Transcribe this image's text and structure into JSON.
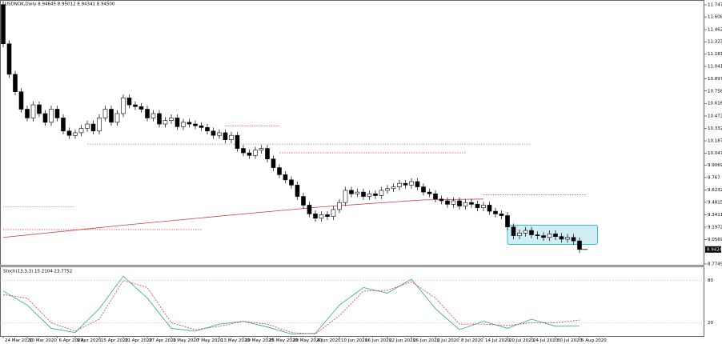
{
  "chart_data": {
    "type": "candlestick",
    "title": "USDNOK,Daily 8.94645 8.95012 8.94341 8.94500",
    "ylim": [
      8.757,
      11.802
    ],
    "yticks": [
      11.7472,
      11.6085,
      11.4624,
      11.3232,
      11.1815,
      11.041,
      10.897,
      10.7585,
      10.6167,
      10.4722,
      10.332,
      10.1876,
      10.0472,
      9.9069,
      9.767,
      9.6232,
      9.4815,
      9.3411,
      9.1972,
      9.0569,
      8.7749
    ],
    "last_price": {
      "value": 8.9424,
      "label": "8.9424"
    },
    "xticks": [
      {
        "value": 0,
        "label": "24 Mar 2020"
      },
      {
        "value": 4,
        "label": "30 Mar 2020"
      },
      {
        "value": 9,
        "label": "6 Apr 2020"
      },
      {
        "value": 12,
        "label": "9 Apr 2020"
      },
      {
        "value": 16,
        "label": "15 Apr 2020"
      },
      {
        "value": 20,
        "label": "21 Apr 2020"
      },
      {
        "value": 24,
        "label": "27 Apr 2020"
      },
      {
        "value": 28,
        "label": "1 May 2020"
      },
      {
        "value": 32,
        "label": "7 May 2020"
      },
      {
        "value": 36,
        "label": "13 May 2020"
      },
      {
        "value": 40,
        "label": "19 May 2020"
      },
      {
        "value": 44,
        "label": "25 May 2020"
      },
      {
        "value": 48,
        "label": "29 May 2020"
      },
      {
        "value": 52,
        "label": "4 Jun 2020"
      },
      {
        "value": 56,
        "label": "10 Jun 2020"
      },
      {
        "value": 60,
        "label": "16 Jun 2020"
      },
      {
        "value": 64,
        "label": "22 Jun 2020"
      },
      {
        "value": 68,
        "label": "26 Jun 2020"
      },
      {
        "value": 72,
        "label": "2 Jul 2020"
      },
      {
        "value": 76,
        "label": "8 Jul 2020"
      },
      {
        "value": 80,
        "label": "14 Jul 2020"
      },
      {
        "value": 84,
        "label": "20 Jul 2020"
      },
      {
        "value": 88,
        "label": "24 Jul 2020"
      },
      {
        "value": 92,
        "label": "30 Jul 2020"
      },
      {
        "value": 96,
        "label": "5 Aug 2020"
      }
    ],
    "candles": [
      [
        11.75,
        11.79,
        11.26,
        11.3
      ],
      [
        11.3,
        11.34,
        10.91,
        10.95
      ],
      [
        10.95,
        10.99,
        10.71,
        10.75
      ],
      [
        10.75,
        10.79,
        10.51,
        10.55
      ],
      [
        10.55,
        10.59,
        10.41,
        10.45
      ],
      [
        10.45,
        10.64,
        10.41,
        10.6
      ],
      [
        10.6,
        10.64,
        10.46,
        10.5
      ],
      [
        10.5,
        10.54,
        10.36,
        10.4
      ],
      [
        10.4,
        10.59,
        10.36,
        10.55
      ],
      [
        10.55,
        10.59,
        10.41,
        10.45
      ],
      [
        10.45,
        10.49,
        10.26,
        10.3
      ],
      [
        10.3,
        10.34,
        10.21,
        10.25
      ],
      [
        10.25,
        10.32,
        10.21,
        10.28
      ],
      [
        10.28,
        10.37,
        10.24,
        10.33
      ],
      [
        10.33,
        10.42,
        10.29,
        10.38
      ],
      [
        10.38,
        10.42,
        10.26,
        10.3
      ],
      [
        10.3,
        10.49,
        10.26,
        10.45
      ],
      [
        10.45,
        10.59,
        10.41,
        10.55
      ],
      [
        10.55,
        10.59,
        10.36,
        10.4
      ],
      [
        10.4,
        10.54,
        10.36,
        10.5
      ],
      [
        10.5,
        10.72,
        10.46,
        10.68
      ],
      [
        10.68,
        10.72,
        10.56,
        10.6
      ],
      [
        10.6,
        10.64,
        10.54,
        10.58
      ],
      [
        10.58,
        10.62,
        10.51,
        10.55
      ],
      [
        10.55,
        10.59,
        10.41,
        10.45
      ],
      [
        10.45,
        10.54,
        10.41,
        10.5
      ],
      [
        10.5,
        10.54,
        10.34,
        10.38
      ],
      [
        10.38,
        10.46,
        10.34,
        10.42
      ],
      [
        10.42,
        10.49,
        10.38,
        10.45
      ],
      [
        10.45,
        10.49,
        10.31,
        10.35
      ],
      [
        10.35,
        10.44,
        10.31,
        10.4
      ],
      [
        10.4,
        10.44,
        10.34,
        10.38
      ],
      [
        10.38,
        10.42,
        10.32,
        10.36
      ],
      [
        10.36,
        10.4,
        10.3,
        10.34
      ],
      [
        10.34,
        10.38,
        10.26,
        10.3
      ],
      [
        10.3,
        10.34,
        10.21,
        10.25
      ],
      [
        10.25,
        10.32,
        10.21,
        10.28
      ],
      [
        10.28,
        10.32,
        10.16,
        10.2
      ],
      [
        10.2,
        10.29,
        10.16,
        10.25
      ],
      [
        10.25,
        10.29,
        10.06,
        10.1
      ],
      [
        10.1,
        10.14,
        10.01,
        10.05
      ],
      [
        10.05,
        10.09,
        9.98,
        10.02
      ],
      [
        10.02,
        10.12,
        9.98,
        10.08
      ],
      [
        10.08,
        10.14,
        10.04,
        10.1
      ],
      [
        10.1,
        10.14,
        9.94,
        9.98
      ],
      [
        9.98,
        10.02,
        9.84,
        9.88
      ],
      [
        9.88,
        9.92,
        9.76,
        9.8
      ],
      [
        9.8,
        9.84,
        9.7,
        9.74
      ],
      [
        9.74,
        9.78,
        9.64,
        9.68
      ],
      [
        9.68,
        9.72,
        9.51,
        9.55
      ],
      [
        9.55,
        9.59,
        9.41,
        9.45
      ],
      [
        9.45,
        9.49,
        9.31,
        9.35
      ],
      [
        9.35,
        9.39,
        9.26,
        9.3
      ],
      [
        9.3,
        9.38,
        9.26,
        9.34
      ],
      [
        9.34,
        9.38,
        9.28,
        9.32
      ],
      [
        9.32,
        9.44,
        9.28,
        9.4
      ],
      [
        9.4,
        9.52,
        9.36,
        9.48
      ],
      [
        9.48,
        9.66,
        9.44,
        9.62
      ],
      [
        9.62,
        9.66,
        9.54,
        9.58
      ],
      [
        9.58,
        9.64,
        9.54,
        9.6
      ],
      [
        9.6,
        9.64,
        9.51,
        9.55
      ],
      [
        9.55,
        9.62,
        9.51,
        9.58
      ],
      [
        9.58,
        9.62,
        9.52,
        9.56
      ],
      [
        9.56,
        9.66,
        9.52,
        9.62
      ],
      [
        9.62,
        9.68,
        9.58,
        9.64
      ],
      [
        9.64,
        9.7,
        9.6,
        9.66
      ],
      [
        9.66,
        9.74,
        9.62,
        9.7
      ],
      [
        9.7,
        9.74,
        9.64,
        9.68
      ],
      [
        9.68,
        9.76,
        9.64,
        9.72
      ],
      [
        9.72,
        9.76,
        9.62,
        9.66
      ],
      [
        9.66,
        9.7,
        9.56,
        9.6
      ],
      [
        9.6,
        9.64,
        9.54,
        9.58
      ],
      [
        9.58,
        9.62,
        9.48,
        9.52
      ],
      [
        9.52,
        9.56,
        9.46,
        9.5
      ],
      [
        9.5,
        9.54,
        9.42,
        9.46
      ],
      [
        9.46,
        9.54,
        9.42,
        9.5
      ],
      [
        9.5,
        9.54,
        9.4,
        9.44
      ],
      [
        9.44,
        9.52,
        9.4,
        9.48
      ],
      [
        9.48,
        9.52,
        9.42,
        9.46
      ],
      [
        9.46,
        9.5,
        9.38,
        9.42
      ],
      [
        9.42,
        9.49,
        9.38,
        9.45
      ],
      [
        9.45,
        9.49,
        9.34,
        9.38
      ],
      [
        9.38,
        9.42,
        9.31,
        9.35
      ],
      [
        9.35,
        9.39,
        9.29,
        9.33
      ],
      [
        9.33,
        9.37,
        9.16,
        9.2
      ],
      [
        9.2,
        9.24,
        9.06,
        9.1
      ],
      [
        9.1,
        9.17,
        9.06,
        9.13
      ],
      [
        9.13,
        9.2,
        9.09,
        9.16
      ],
      [
        9.16,
        9.2,
        9.07,
        9.11
      ],
      [
        9.11,
        9.15,
        9.06,
        9.1
      ],
      [
        9.1,
        9.14,
        9.04,
        9.08
      ],
      [
        9.08,
        9.16,
        9.04,
        9.12
      ],
      [
        9.12,
        9.16,
        9.05,
        9.09
      ],
      [
        9.09,
        9.13,
        9.02,
        9.06
      ],
      [
        9.06,
        9.12,
        9.02,
        9.08
      ],
      [
        9.08,
        9.12,
        9.0,
        9.04
      ],
      [
        9.04,
        9.08,
        8.9,
        8.9424
      ]
    ],
    "ma": {
      "color": "#d43a3a",
      "x": [
        0,
        20,
        40,
        53,
        70,
        80
      ],
      "values": [
        9.08,
        9.22,
        9.35,
        9.43,
        9.51,
        9.52
      ]
    },
    "levels": [
      {
        "value": 10.36,
        "from": 37,
        "to": 46,
        "color": "#d43a3a"
      },
      {
        "value": 10.15,
        "from": 14,
        "to": 88,
        "color": "#8a9a8a"
      },
      {
        "value": 10.05,
        "from": 46,
        "to": 77,
        "color": "#d43a3a"
      },
      {
        "value": 9.57,
        "from": 80,
        "to": 97,
        "color": "#d43a3a"
      },
      {
        "value": 9.43,
        "from": 0,
        "to": 12,
        "color": "#5ab8a8"
      },
      {
        "value": 9.17,
        "from": 0,
        "to": 33,
        "color": "#d43a3a"
      }
    ],
    "box": {
      "from": 84,
      "to": 99,
      "top": 9.22,
      "bottom": 9.0,
      "color": "#3fb8d8"
    },
    "stoch": {
      "title": "Stoch(13,3,3) 15.2104 23.7752",
      "ylim": [
        0,
        100
      ],
      "yticks": [
        80,
        20
      ],
      "x": [
        0,
        4,
        8,
        12,
        16,
        20,
        24,
        28,
        32,
        36,
        40,
        44,
        48,
        52,
        56,
        60,
        64,
        68,
        72,
        76,
        80,
        84,
        88,
        92,
        96
      ],
      "k_color": "#2aa88a",
      "d_color": "#d43a3a",
      "k_values": [
        65,
        45,
        12,
        6,
        40,
        86,
        55,
        12,
        8,
        18,
        22,
        14,
        4,
        5,
        45,
        70,
        62,
        82,
        40,
        10,
        22,
        12,
        25,
        15,
        15.2104
      ],
      "d_values": [
        60,
        55,
        20,
        8,
        25,
        80,
        70,
        20,
        10,
        15,
        22,
        18,
        6,
        4,
        30,
        65,
        66,
        78,
        55,
        18,
        18,
        16,
        20,
        20,
        23.7752
      ]
    }
  }
}
